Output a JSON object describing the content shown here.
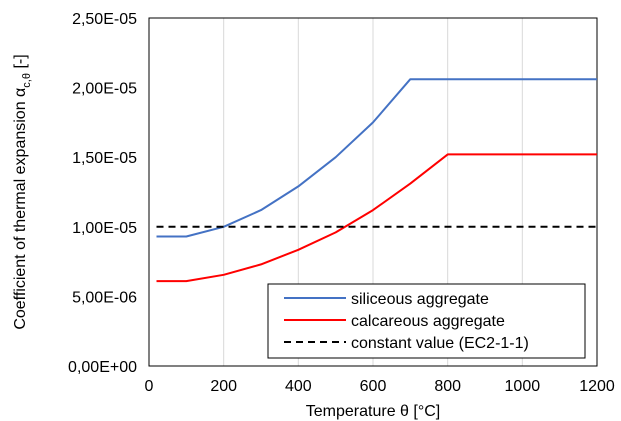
{
  "chart_data": {
    "type": "line",
    "xlabel": "Temperature θ [°C]",
    "ylabel_main": "Coefficient of thermal expansion α",
    "ylabel_subscript": "c,θ",
    "ylabel_suffix": " [-]",
    "xlim": [
      0,
      1200
    ],
    "ylim": [
      0,
      2.5e-05
    ],
    "x_ticks": [
      0,
      200,
      400,
      600,
      800,
      1000,
      1200
    ],
    "x_tick_labels": [
      "0",
      "200",
      "400",
      "600",
      "800",
      "1000",
      "1200"
    ],
    "y_ticks": [
      0,
      5e-06,
      1e-05,
      1.5e-05,
      2e-05,
      2.5e-05
    ],
    "y_tick_labels": [
      "0,00E+00",
      "5,00E-06",
      "1,00E-05",
      "1,50E-05",
      "2,00E-05",
      "2,50E-05"
    ],
    "grid": "vertical",
    "legend_position": "bottom-right",
    "series": [
      {
        "name": "siliceous aggregate",
        "color": "#4472C4",
        "dash": "solid",
        "x": [
          20,
          100,
          200,
          300,
          400,
          500,
          600,
          700,
          800,
          900,
          1000,
          1100,
          1200
        ],
        "y": [
          9.3e-06,
          9.3e-06,
          1e-05,
          1.12e-05,
          1.29e-05,
          1.5e-05,
          1.75e-05,
          2.06e-05,
          2.06e-05,
          2.06e-05,
          2.06e-05,
          2.06e-05,
          2.06e-05
        ]
      },
      {
        "name": "calcareous aggregate",
        "color": "#FF0000",
        "dash": "solid",
        "x": [
          20,
          100,
          200,
          300,
          400,
          500,
          600,
          700,
          800,
          900,
          1000,
          1100,
          1200
        ],
        "y": [
          6.1e-06,
          6.1e-06,
          6.55e-06,
          7.3e-06,
          8.35e-06,
          9.6e-06,
          1.12e-05,
          1.31e-05,
          1.52e-05,
          1.52e-05,
          1.52e-05,
          1.52e-05,
          1.52e-05
        ]
      },
      {
        "name": "constant value (EC2-1-1)",
        "color": "#000000",
        "dash": "dashed",
        "x": [
          20,
          1200
        ],
        "y": [
          1e-05,
          1e-05
        ]
      }
    ]
  }
}
